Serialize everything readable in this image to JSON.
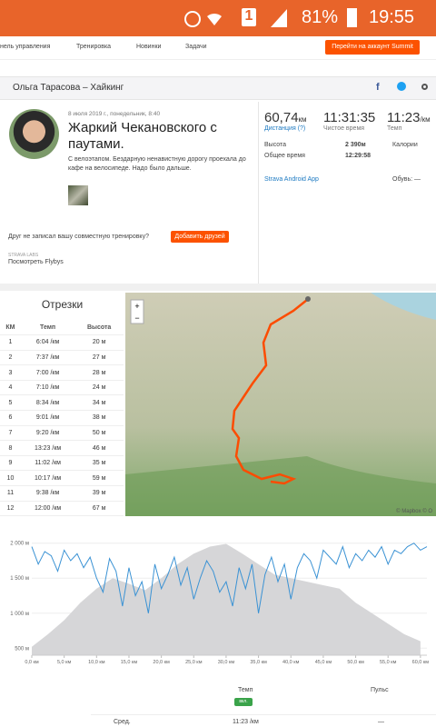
{
  "status_bar": {
    "notification": "1",
    "battery": "81%",
    "time": "19:55"
  },
  "nav": {
    "items": [
      "нель управления",
      "Тренировка",
      "Новинки",
      "Задачи"
    ],
    "button": "Перейти на аккаунт Summit"
  },
  "header": {
    "title": "Ольга Тарасова – Хайкинг"
  },
  "activity": {
    "date": "8 июля 2019 г., понедельник, 8:40",
    "title": "Жаркий Чекановского с паутами.",
    "description": "С велоэтапом. Бездарную ненавистную дорогу проехала до кафе на велосипеде. Надо было дальше.",
    "friend_prompt": "Друг не записал вашу совместную тренировку?",
    "friend_button": "Добавить друзей",
    "labs": "STRAVA LABS",
    "flybys": "Посмотреть Flybys"
  },
  "stats": {
    "distance": "60,74",
    "distance_unit": "км",
    "distance_label": "Дистанция (?)",
    "moving_time": "11:31:35",
    "moving_time_label": "Чистое время",
    "pace": "11:23",
    "pace_unit": "/км",
    "pace_label": "Темп",
    "elevation_label": "Высота",
    "elevation": "2 390м",
    "calories_label": "Калории",
    "elapsed_label": "Общее время",
    "elapsed": "12:29:58",
    "device": "Strava Android App",
    "shoes": "Обувь: —"
  },
  "splits": {
    "title": "Отрезки",
    "columns": [
      "КМ",
      "Темп",
      "Высота"
    ],
    "rows": [
      [
        "1",
        "6:04 /км",
        "20 м"
      ],
      [
        "2",
        "7:37 /км",
        "27 м"
      ],
      [
        "3",
        "7:00 /км",
        "28 м"
      ],
      [
        "4",
        "7:10 /км",
        "24 м"
      ],
      [
        "5",
        "8:34 /км",
        "34 м"
      ],
      [
        "6",
        "9:01 /км",
        "38 м"
      ],
      [
        "7",
        "9:20 /км",
        "50 м"
      ],
      [
        "8",
        "13:23 /км",
        "46 м"
      ],
      [
        "9",
        "11:02 /км",
        "35 м"
      ],
      [
        "10",
        "10:17 /км",
        "59 м"
      ],
      [
        "11",
        "9:38 /км",
        "39 м"
      ],
      [
        "12",
        "12:00 /км",
        "67 м"
      ]
    ]
  },
  "map": {
    "attribution": "© Mapbox © O"
  },
  "chart_data": {
    "type": "area",
    "xlim": [
      0,
      61
    ],
    "ylim": [
      400,
      2100
    ],
    "yticks": [
      {
        "value": 500,
        "label": "500 м"
      },
      {
        "value": 1000,
        "label": "1 000 м"
      },
      {
        "value": 1500,
        "label": "1 500 м"
      },
      {
        "value": 2000,
        "label": "2 000 м"
      }
    ],
    "xticks": [
      {
        "value": 0,
        "label": "0,0 км"
      },
      {
        "value": 5,
        "label": "5,0 км"
      },
      {
        "value": 10,
        "label": "10,0 км"
      },
      {
        "value": 15,
        "label": "15,0 км"
      },
      {
        "value": 20,
        "label": "20,0 км"
      },
      {
        "value": 25,
        "label": "25,0 км"
      },
      {
        "value": 30,
        "label": "30,0 км"
      },
      {
        "value": 35,
        "label": "35,0 км"
      },
      {
        "value": 40,
        "label": "40,0 км"
      },
      {
        "value": 45,
        "label": "45,0 км"
      },
      {
        "value": 50,
        "label": "50,0 км"
      },
      {
        "value": 55,
        "label": "55,0 км"
      },
      {
        "value": 60,
        "label": "60,0 км"
      }
    ],
    "elevation": {
      "color": "#d6d6d8",
      "x": [
        0,
        2.5,
        5,
        7.5,
        10,
        12.5,
        15,
        17.5,
        20,
        22.5,
        25,
        27.5,
        30,
        32.5,
        35,
        37.5,
        40,
        42.5,
        45,
        47.5,
        50,
        52.5,
        55,
        57.5,
        60
      ],
      "values": [
        520,
        700,
        900,
        1150,
        1350,
        1500,
        1420,
        1330,
        1500,
        1700,
        1850,
        1950,
        1990,
        1850,
        1700,
        1550,
        1500,
        1450,
        1400,
        1350,
        1150,
        1000,
        850,
        700,
        600
      ]
    },
    "pace": {
      "color": "#3a92d4",
      "x": [
        0,
        1,
        2,
        3,
        4,
        5,
        6,
        7,
        8,
        9,
        10,
        11,
        12,
        13,
        14,
        15,
        16,
        17,
        18,
        19,
        20,
        21,
        22,
        23,
        24,
        25,
        26,
        27,
        28,
        29,
        30,
        31,
        32,
        33,
        34,
        35,
        36,
        37,
        38,
        39,
        40,
        41,
        42,
        43,
        44,
        45,
        46,
        47,
        48,
        49,
        50,
        51,
        52,
        53,
        54,
        55,
        56,
        57,
        58,
        59,
        60,
        61
      ],
      "values": [
        1950,
        1700,
        1880,
        1820,
        1600,
        1900,
        1750,
        1850,
        1650,
        1800,
        1500,
        1300,
        1780,
        1600,
        1100,
        1650,
        1250,
        1450,
        1000,
        1700,
        1350,
        1550,
        1800,
        1400,
        1650,
        1200,
        1500,
        1750,
        1600,
        1300,
        1450,
        1100,
        1650,
        1350,
        1700,
        1000,
        1550,
        1800,
        1450,
        1700,
        1200,
        1650,
        1850,
        1750,
        1500,
        1900,
        1800,
        1700,
        1950,
        1650,
        1850,
        1750,
        1900,
        1800,
        1950,
        1700,
        1900,
        1850,
        1950,
        2000,
        1900,
        1950
      ]
    }
  },
  "footer": {
    "pace": "Темп",
    "heart_rate": "Пульс",
    "toggle": "вкл.",
    "avg_label": "Сред.",
    "avg_pace": "11:23 /км",
    "avg_hr": "—"
  }
}
